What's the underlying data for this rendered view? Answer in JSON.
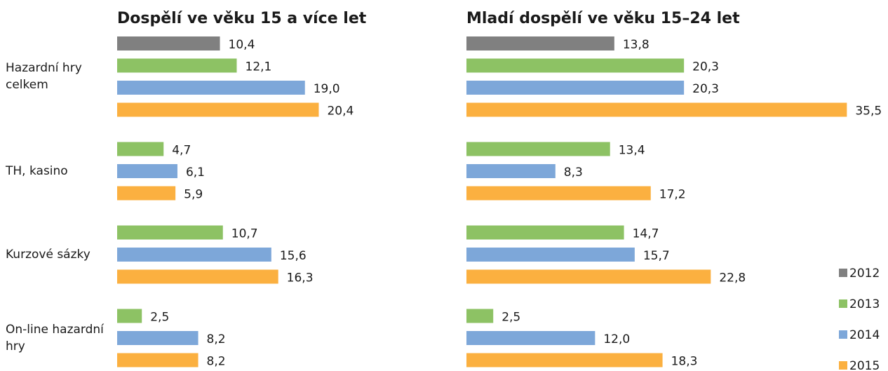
{
  "chart_data": [
    {
      "type": "bar",
      "orientation": "horizontal",
      "title": "Dospělí ve věku 15 a více let",
      "categories": [
        "Hazardní hry celkem",
        "TH, kasino",
        "Kurzové sázky",
        "On-line hazardní hry"
      ],
      "xlim": [
        0,
        33
      ],
      "series": [
        {
          "name": "2012",
          "color": "#808080",
          "values": [
            10.4,
            null,
            null,
            null
          ],
          "value_labels": [
            "10,4",
            null,
            null,
            null
          ]
        },
        {
          "name": "2013",
          "color": "#8dc264",
          "values": [
            12.1,
            4.7,
            10.7,
            2.5
          ],
          "value_labels": [
            "12,1",
            "4,7",
            "10,7",
            "2,5"
          ]
        },
        {
          "name": "2014",
          "color": "#7da7d9",
          "values": [
            19.0,
            6.1,
            15.6,
            8.2
          ],
          "value_labels": [
            "19,0",
            "6,1",
            "15,6",
            "8,2"
          ]
        },
        {
          "name": "2015",
          "color": "#fbb040",
          "values": [
            20.4,
            5.9,
            16.3,
            8.2
          ],
          "value_labels": [
            "20,4",
            "5,9",
            "16,3",
            "8,2"
          ]
        }
      ]
    },
    {
      "type": "bar",
      "orientation": "horizontal",
      "title": "Mladí dospělí ve věku 15–24 let",
      "xlim": [
        0,
        36
      ],
      "series": [
        {
          "color": "#808080",
          "values": [
            13.8,
            null,
            null,
            null
          ],
          "value_labels": [
            "13,8",
            null,
            null,
            null
          ]
        },
        {
          "color": "#8dc264",
          "values": [
            20.3,
            13.4,
            14.7,
            2.5
          ],
          "value_labels": [
            "20,3",
            "13,4",
            "14,7",
            "2,5"
          ]
        },
        {
          "color": "#7da7d9",
          "values": [
            20.3,
            8.3,
            15.7,
            12.0
          ],
          "value_labels": [
            "20,3",
            "8,3",
            "15,7",
            "12,0"
          ]
        },
        {
          "color": "#fbb040",
          "values": [
            35.5,
            17.2,
            22.8,
            18.3
          ],
          "value_labels": [
            "35,5",
            "17,2",
            "22,8",
            "18,3"
          ]
        }
      ]
    }
  ]
}
